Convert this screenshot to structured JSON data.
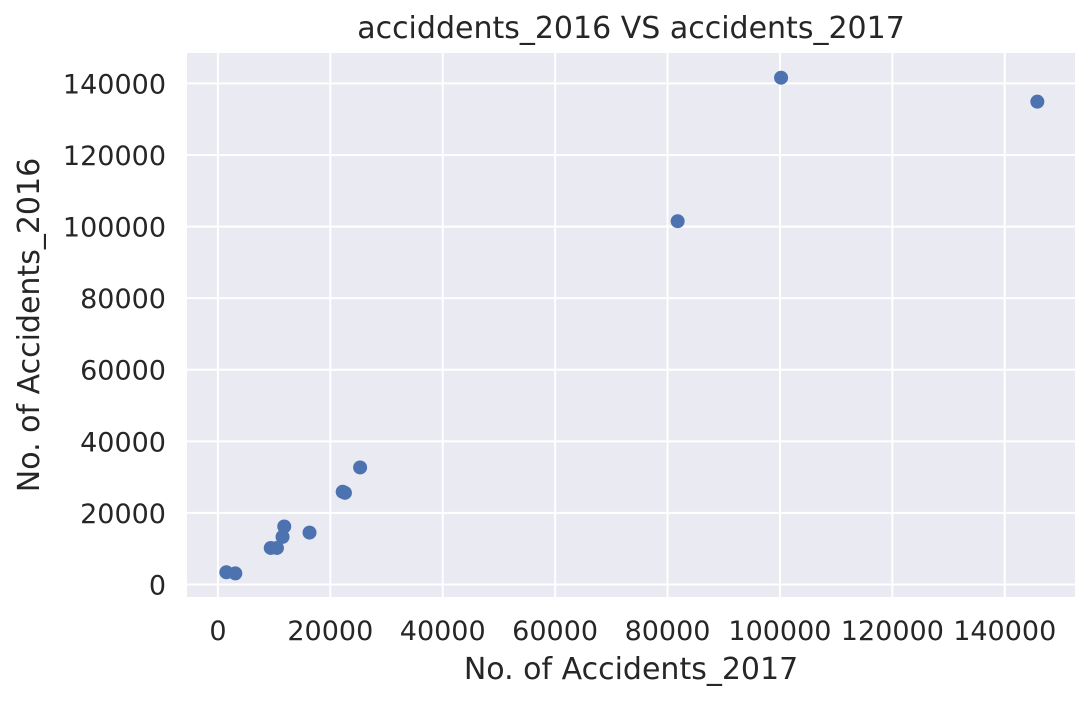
{
  "chart_data": {
    "type": "scatter",
    "title": "acciddents_2016 VS accidents_2017",
    "xlabel": "No. of Accidents_2017",
    "ylabel": "No. of Accidents_2016",
    "xlim": [
      -5500,
      152500
    ],
    "ylim": [
      -3500,
      148500
    ],
    "xticks": [
      0,
      20000,
      40000,
      60000,
      80000,
      100000,
      120000,
      140000
    ],
    "yticks": [
      0,
      20000,
      40000,
      60000,
      80000,
      100000,
      120000,
      140000
    ],
    "xtick_labels": [
      "0",
      "20000",
      "40000",
      "60000",
      "80000",
      "100000",
      "120000",
      "140000"
    ],
    "ytick_labels": [
      "0",
      "20000",
      "40000",
      "60000",
      "80000",
      "100000",
      "120000",
      "140000"
    ],
    "grid": true,
    "background": "#EAEAF2",
    "marker_color": "#4C72B0",
    "points": [
      {
        "x": 1500,
        "y": 3400
      },
      {
        "x": 3100,
        "y": 3100
      },
      {
        "x": 9400,
        "y": 10200
      },
      {
        "x": 10500,
        "y": 10200
      },
      {
        "x": 11500,
        "y": 13300
      },
      {
        "x": 11800,
        "y": 16200
      },
      {
        "x": 16300,
        "y": 14500
      },
      {
        "x": 22200,
        "y": 25900
      },
      {
        "x": 22600,
        "y": 25600
      },
      {
        "x": 25300,
        "y": 32700
      },
      {
        "x": 81800,
        "y": 101500
      },
      {
        "x": 100200,
        "y": 141600
      },
      {
        "x": 145800,
        "y": 134900
      }
    ]
  }
}
